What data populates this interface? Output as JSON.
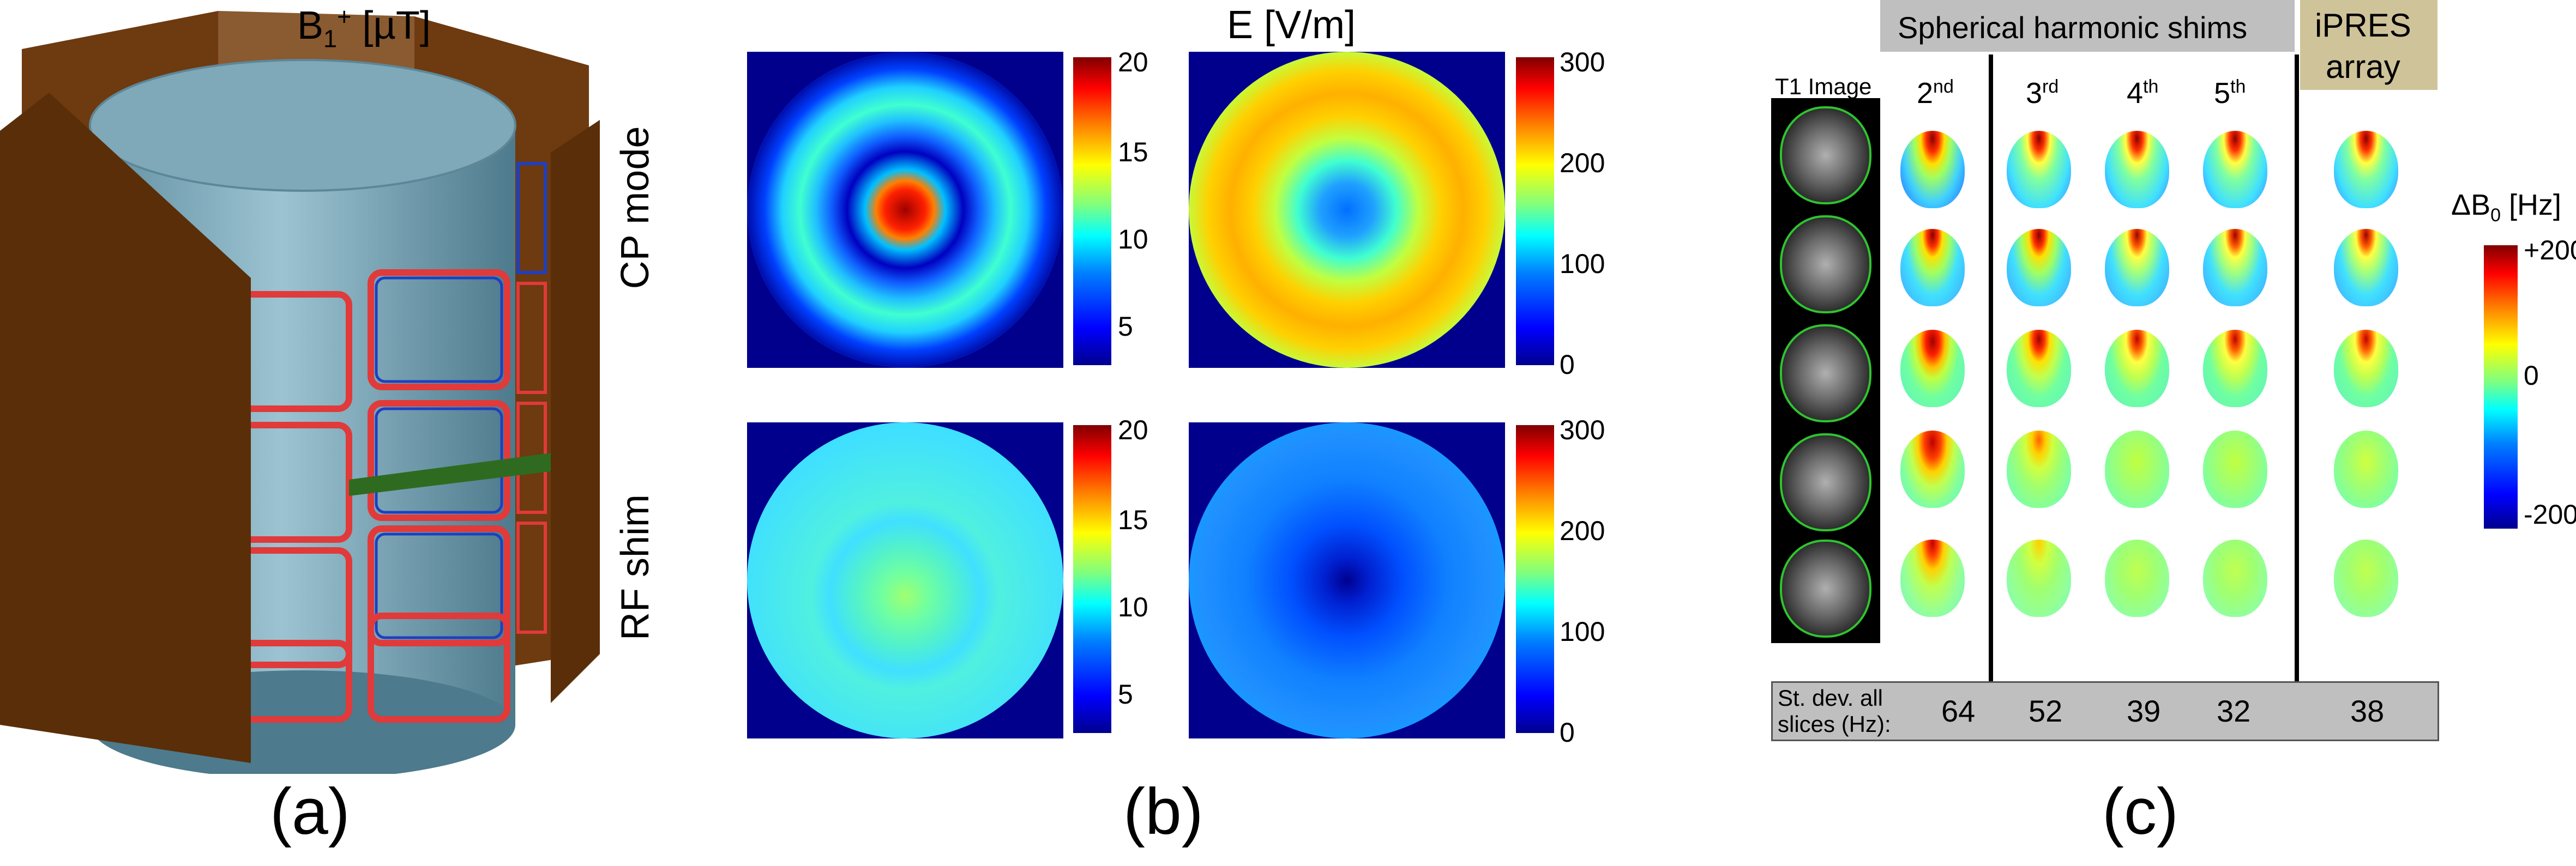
{
  "panel_labels": {
    "a": "(a)",
    "b": "(b)",
    "c": "(c)"
  },
  "panel_b": {
    "col_headers": {
      "b1_base": "B",
      "b1_sub": "1",
      "b1_sup": "+",
      "b1_unit": " [µT]",
      "e": "E [V/m]"
    },
    "row_labels": {
      "cp": "CP mode",
      "rf": "RF shim"
    },
    "b1_colorbar_ticks": [
      "20",
      "15",
      "10",
      "5"
    ],
    "e_colorbar_ticks": [
      "300",
      "200",
      "100",
      "0"
    ]
  },
  "panel_c": {
    "sh_header": "Spherical harmonic shims",
    "ipres_header_line1": "iPRES",
    "ipres_header_line2": "array",
    "t1_label": "T1 Image",
    "orders": [
      {
        "num": "2",
        "sup": "nd"
      },
      {
        "num": "3",
        "sup": "rd"
      },
      {
        "num": "4",
        "sup": "th"
      },
      {
        "num": "5",
        "sup": "th"
      }
    ],
    "colorbar_title_delta": "ΔB",
    "colorbar_title_sub": "0",
    "colorbar_title_unit": " [Hz]",
    "colorbar_ticks": [
      "+200",
      "0",
      "-200"
    ],
    "std_label_line1": "St. dev. all",
    "std_label_line2": "slices (Hz):",
    "std_values": [
      "64",
      "52",
      "39",
      "32",
      "38"
    ]
  },
  "colors": {
    "coil_wood": "#5a2e08",
    "phantom": "#7fa8b8",
    "coil_red": "#e03a3a",
    "coil_blue": "#1f3fbf",
    "tan": "#cfc39a",
    "gray": "#bfbfbf"
  }
}
